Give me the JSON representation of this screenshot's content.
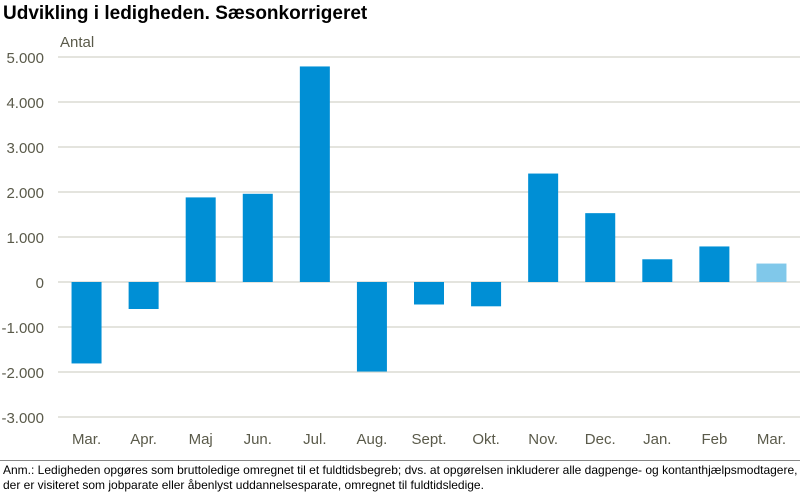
{
  "chart_data": {
    "type": "bar",
    "title": "Udvikling i ledigheden. Sæsonkorrigeret",
    "ylabel": "Antal",
    "xlabel": "",
    "categories": [
      "Mar.",
      "Apr.",
      "Maj",
      "Jun.",
      "Jul.",
      "Aug.",
      "Sept.",
      "Okt.",
      "Nov.",
      "Dec.",
      "Jan.",
      "Feb",
      "Mar."
    ],
    "values": [
      -1810,
      -600,
      1880,
      1960,
      4790,
      -1990,
      -500,
      -540,
      2410,
      1530,
      505,
      790,
      410
    ],
    "ylim": [
      -3000,
      5000
    ],
    "yticks": [
      5000,
      4000,
      3000,
      2000,
      1000,
      0,
      -1000,
      -2000,
      -3000
    ],
    "ytick_labels": [
      "5.000",
      "4.000",
      "3.000",
      "2.000",
      "1.000",
      "0",
      "-1.000",
      "-2.000",
      "-3.000"
    ],
    "grid": true,
    "colors": {
      "bar": "#008fd5",
      "last_bar": "#80c8ea",
      "grid": "#dcdcd4",
      "axis_text": "#5a5a4a"
    }
  },
  "footnote": "Anm.: Ledigheden opgøres som bruttoledige omregnet til et fuldtidsbegreb; dvs. at opgørelsen inkluderer alle dagpenge- og kontanthjælpsmodtagere, der er visiteret som jobparate eller åbenlyst uddannelsesparate, omregnet til fuldtidsledige."
}
